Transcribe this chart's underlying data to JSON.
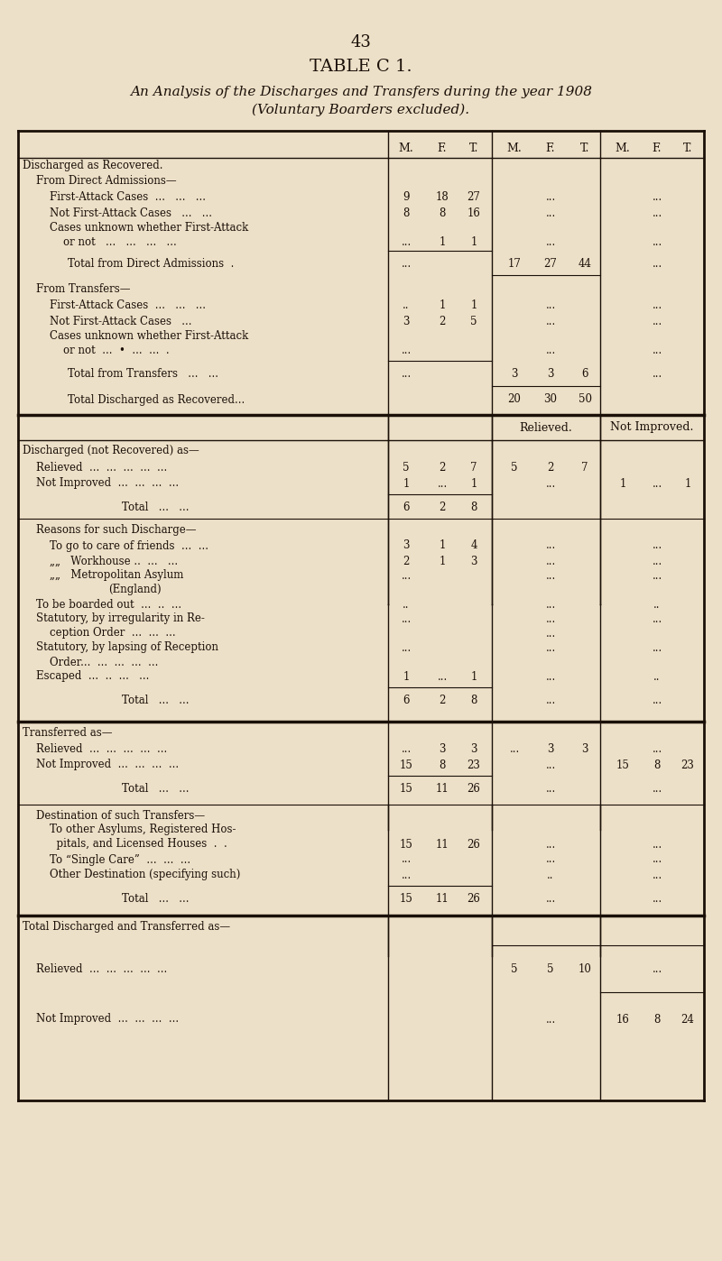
{
  "page_number": "43",
  "title": "TABLE C 1.",
  "subtitle": "An Analysis of the Discharges and Transfers during the year 1908",
  "subtitle2": "(Voluntary Boarders excluded).",
  "bg_color": "#ede0c8",
  "text_color": "#1a1008",
  "figsize": [
    8.0,
    13.98
  ],
  "dpi": 100
}
